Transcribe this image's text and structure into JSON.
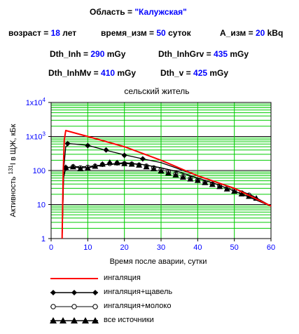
{
  "header": {
    "region_label": "Область = ",
    "region_value": "\"Калужская\"",
    "age_label": "возраст = ",
    "age_value": "18",
    "age_unit": " лет",
    "time_label": "время_изм = ",
    "time_value": "50",
    "time_unit": " суток",
    "activity_label": "A_изм = ",
    "activity_value": "20",
    "activity_unit": " kBq",
    "dth_inh_label": "Dth_Inh = ",
    "dth_inh_value": "290",
    "dth_inh_unit": " mGy",
    "dth_inhgrv_label": "Dth_InhGrv = ",
    "dth_inhgrv_value": "435",
    "dth_inhgrv_unit": " mGy",
    "dth_inhmv_label": "Dth_InhMv = ",
    "dth_inhmv_value": "410",
    "dth_inhmv_unit": " mGy",
    "dth_v_label": "Dth_v = ",
    "dth_v_value": "425",
    "dth_v_unit": " mGy"
  },
  "colors": {
    "grid": "#00cc00",
    "inhalation": "#ff0000",
    "series_black": "#000000",
    "axis_tick_labels": "#0000ff"
  },
  "chart_data": {
    "type": "line",
    "title": "сельский житель",
    "xlabel": "Время после аварии, сутки",
    "ylabel_prefix": "Активность ",
    "ylabel_sup": "131",
    "ylabel_suffix": "I в ЩЖ, кБк",
    "x_scale": "linear",
    "y_scale": "log",
    "xlim": [
      0,
      60
    ],
    "ylim": [
      1,
      10000
    ],
    "x_ticks": [
      0,
      10,
      20,
      30,
      40,
      50,
      60
    ],
    "x_tick_labels": [
      "0",
      "10",
      "20",
      "30",
      "40",
      "50",
      "60"
    ],
    "y_ticks": [
      1,
      10,
      100,
      1000,
      10000
    ],
    "y_tick_labels": [
      "1",
      "10",
      "100",
      "1x10",
      "1x10"
    ],
    "y_tick_sups": [
      "",
      "",
      "",
      "3",
      "4"
    ],
    "grid": true,
    "legend_position": "below",
    "series": [
      {
        "name": "ингаляция",
        "marker": "none",
        "x": [
          3,
          3.3,
          3.6,
          4,
          10,
          20,
          30,
          40,
          50,
          60
        ],
        "y": [
          1,
          100,
          800,
          1500,
          1000,
          500,
          200,
          70,
          30,
          9
        ]
      },
      {
        "name": "ингаляция+щавель",
        "marker": "diamond",
        "x": [
          3,
          3.4,
          4,
          5,
          10,
          15,
          20,
          25,
          30,
          35,
          40,
          45,
          50,
          55,
          60
        ],
        "y": [
          1,
          100,
          500,
          620,
          550,
          390,
          290,
          220,
          170,
          110,
          70,
          45,
          30,
          18,
          9
        ],
        "marker_x": [
          4.5,
          10,
          15,
          20,
          25
        ],
        "marker_y": [
          620,
          540,
          400,
          280,
          220
        ]
      },
      {
        "name": "ингаляция+молоко",
        "marker": "circle-open",
        "x": [
          3,
          3.4,
          4,
          6,
          10,
          15,
          20,
          25,
          30,
          35,
          40,
          45,
          50,
          55,
          60
        ],
        "y": [
          1,
          60,
          120,
          130,
          130,
          150,
          160,
          150,
          120,
          90,
          60,
          40,
          25,
          15,
          9
        ],
        "marker_x": [
          4,
          6,
          8,
          10,
          12,
          14,
          16,
          18,
          20,
          22,
          24,
          26,
          28,
          30,
          32,
          34,
          36,
          38,
          40,
          42,
          44,
          46,
          48,
          50,
          52,
          54
        ],
        "marker_y": [
          120,
          130,
          120,
          125,
          135,
          150,
          160,
          165,
          160,
          155,
          145,
          135,
          120,
          105,
          90,
          78,
          66,
          58,
          52,
          45,
          40,
          35,
          30,
          26,
          22,
          19
        ]
      },
      {
        "name": "все источники",
        "marker": "triangle",
        "x": [
          3,
          3.4,
          4,
          6,
          10,
          15,
          20,
          25,
          30,
          35,
          40,
          45,
          50,
          55,
          60
        ],
        "y": [
          1,
          70,
          120,
          125,
          120,
          150,
          170,
          150,
          120,
          90,
          60,
          40,
          25,
          15,
          9
        ],
        "marker_x": [
          4,
          6,
          8,
          10,
          12,
          14,
          16,
          18,
          20,
          22,
          24,
          26,
          28,
          30,
          32,
          34,
          36,
          38,
          40,
          42,
          44,
          46,
          48,
          50,
          52,
          54,
          56
        ],
        "marker_y": [
          120,
          125,
          110,
          115,
          130,
          150,
          170,
          165,
          155,
          150,
          140,
          125,
          110,
          95,
          82,
          72,
          62,
          55,
          50,
          43,
          38,
          33,
          28,
          24,
          20,
          17,
          15
        ]
      }
    ]
  }
}
